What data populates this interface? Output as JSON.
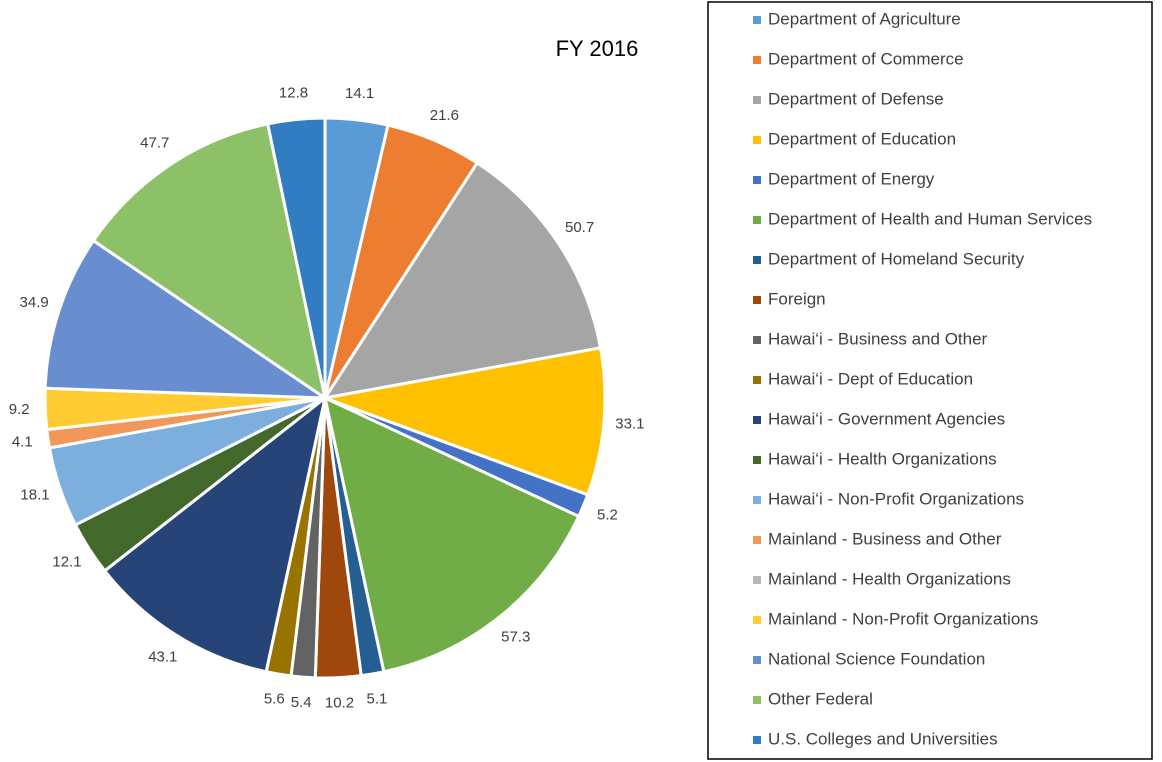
{
  "chart_data": {
    "type": "pie",
    "title": "FY 2016",
    "categories": [
      "Department of Agriculture",
      "Department of Commerce",
      "Department of Defense",
      "Department of Education",
      "Department of Energy",
      "Department of Health and Human Services",
      "Department of Homeland Security",
      "Foreign",
      "Hawai‘i - Business and Other",
      "Hawai‘i - Dept of Education",
      "Hawai‘i - Government Agencies",
      "Hawai‘i - Health Organizations",
      "Hawai‘i - Non-Profit Organizations",
      "Mainland - Business and Other",
      "Mainland - Health Organizations",
      "Mainland - Non-Profit Organizations",
      "National Science Foundation",
      "Other Federal",
      "U.S. Colleges and Universities"
    ],
    "values": [
      14.1,
      21.6,
      50.7,
      33.1,
      5.2,
      57.3,
      5.1,
      10.2,
      5.4,
      5.6,
      43.1,
      12.1,
      18.1,
      4.1,
      0,
      9.2,
      34.9,
      47.7,
      12.8
    ],
    "colors": [
      "#5b9bd5",
      "#ed7d31",
      "#a5a5a5",
      "#ffc000",
      "#4472c4",
      "#70ad47",
      "#255e91",
      "#9e480e",
      "#636363",
      "#997300",
      "#264478",
      "#43682b",
      "#7cafdd",
      "#f1975a",
      "#b7b7b7",
      "#ffcd33",
      "#698ed0",
      "#8cc168",
      "#327dc2"
    ],
    "legend": "right"
  }
}
